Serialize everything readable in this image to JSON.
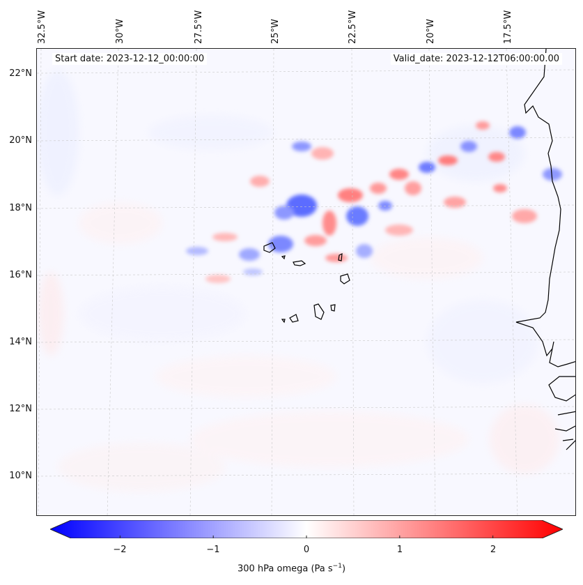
{
  "map": {
    "start_date_text": "Start date: 2023-12-12_00:00:00",
    "valid_date_text": "Valid_date: 2023-12-12T06:00:00.00",
    "longitude_labels": [
      "32.5°W",
      "30°W",
      "27.5°W",
      "25°W",
      "22.5°W",
      "20°W",
      "17.5°W"
    ],
    "latitude_labels": [
      "22°N",
      "20°N",
      "18°N",
      "16°N",
      "14°N",
      "12°N",
      "10°N"
    ],
    "field": "300 hPa omega",
    "region": "Eastern tropical Atlantic, Cape Verde Islands and West African coast",
    "colors": {
      "negative": "#0000ff",
      "zero": "#ffffff",
      "positive": "#ff0000",
      "coastline": "#000000"
    }
  },
  "colorbar": {
    "ticks": [
      "−2",
      "−1",
      "0",
      "1",
      "2"
    ],
    "tick_values": [
      -2,
      -1,
      0,
      1,
      2
    ],
    "range": [
      -2.75,
      2.75
    ],
    "label_prefix": "300 hPa omega (Pa s",
    "label_exp": "−1",
    "label_suffix": ")"
  }
}
